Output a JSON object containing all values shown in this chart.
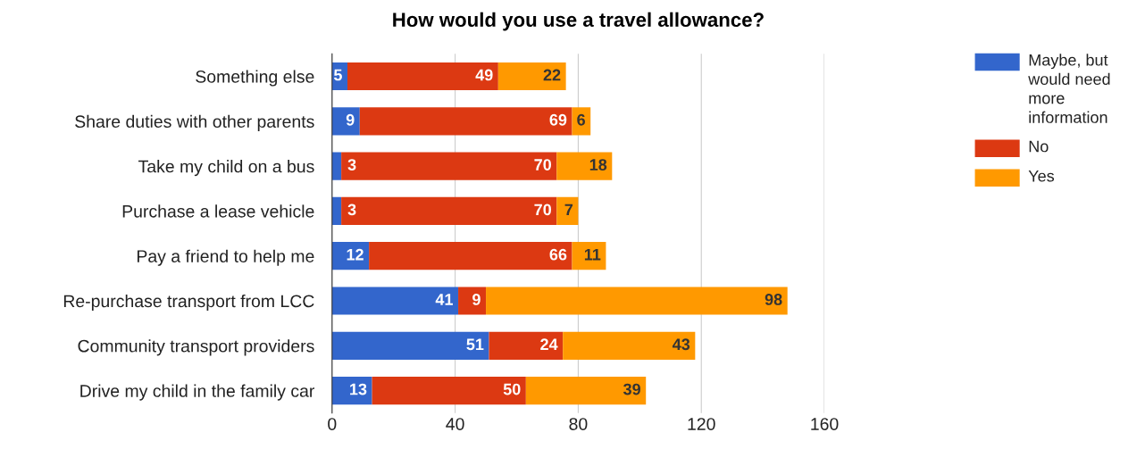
{
  "chart_data": {
    "type": "bar",
    "orientation": "horizontal",
    "stacked": true,
    "title": "How would you use a travel allowance?",
    "categories": [
      "Something else",
      "Share duties with other parents",
      "Take my child on a bus",
      "Purchase a lease vehicle",
      "Pay a friend to help me",
      "Re-purchase transport from LCC",
      "Community transport providers",
      "Drive my child in the family car"
    ],
    "series": [
      {
        "name": "Maybe, but would need more information",
        "color": "#3366cc",
        "values": [
          5,
          9,
          3,
          3,
          12,
          41,
          51,
          13
        ]
      },
      {
        "name": "No",
        "color": "#dc3912",
        "values": [
          49,
          69,
          70,
          70,
          66,
          9,
          24,
          50
        ]
      },
      {
        "name": "Yes",
        "color": "#ff9900",
        "values": [
          22,
          6,
          18,
          7,
          11,
          98,
          43,
          39
        ]
      }
    ],
    "xlim": [
      0,
      160
    ],
    "xticks": [
      0,
      40,
      80,
      120,
      160
    ],
    "grid": "x",
    "legend": "top right",
    "data_labels": true
  }
}
